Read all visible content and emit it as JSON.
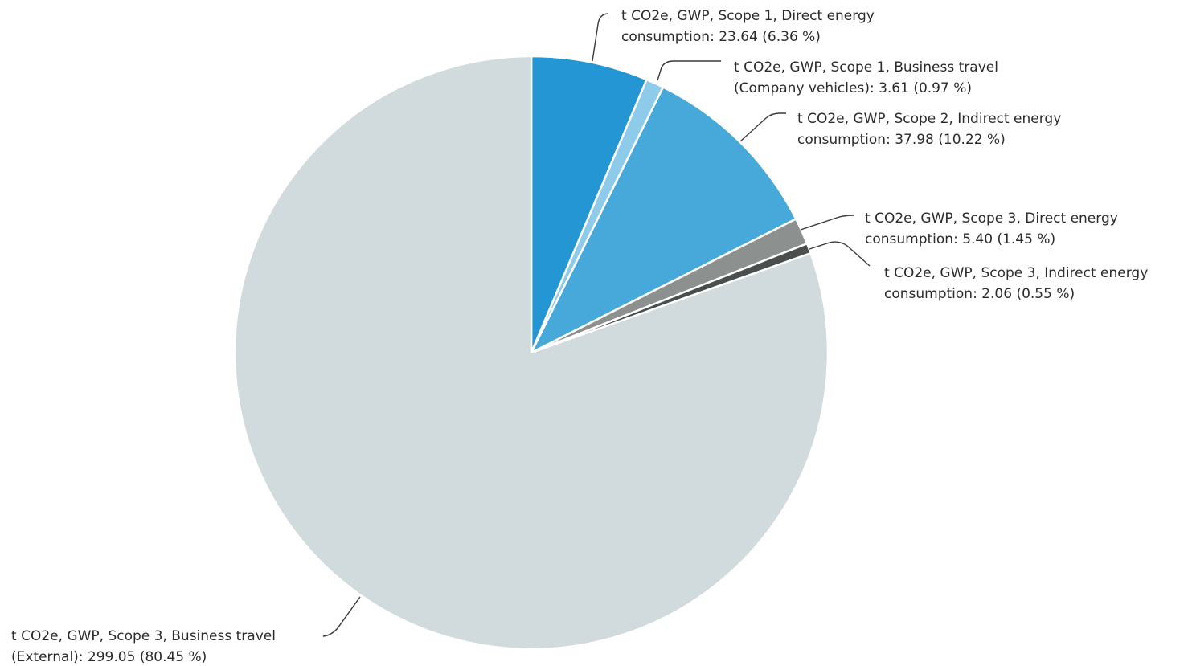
{
  "chart_data": {
    "type": "pie",
    "start_angle_deg": 0,
    "direction": "clockwise",
    "slices": [
      {
        "label_line1": "t CO2e, GWP, Scope 1, Direct energy",
        "label_line2": "consumption: 23.64 (6.36 %)",
        "value": 23.64,
        "percent": 6.36,
        "color": "#2596d4"
      },
      {
        "label_line1": "t CO2e, GWP, Scope 1, Business travel",
        "label_line2": "(Company vehicles): 3.61 (0.97 %)",
        "value": 3.61,
        "percent": 0.97,
        "color": "#8ecbea"
      },
      {
        "label_line1": "t CO2e, GWP, Scope 2, Indirect energy",
        "label_line2": "consumption: 37.98 (10.22 %)",
        "value": 37.98,
        "percent": 10.22,
        "color": "#47a8da"
      },
      {
        "label_line1": "t CO2e, GWP, Scope 3, Direct energy",
        "label_line2": "consumption: 5.40 (1.45 %)",
        "value": 5.4,
        "percent": 1.45,
        "color": "#8c908e"
      },
      {
        "label_line1": "t CO2e, GWP, Scope 3, Indirect energy",
        "label_line2": "consumption: 2.06 (0.55 %)",
        "value": 2.06,
        "percent": 0.55,
        "color": "#4a4e4d"
      },
      {
        "label_line1": "t CO2e, GWP, Scope 3, Business travel",
        "label_line2": "(External): 299.05 (80.45 %)",
        "value": 299.05,
        "percent": 80.45,
        "color": "#d1dadd"
      }
    ]
  }
}
